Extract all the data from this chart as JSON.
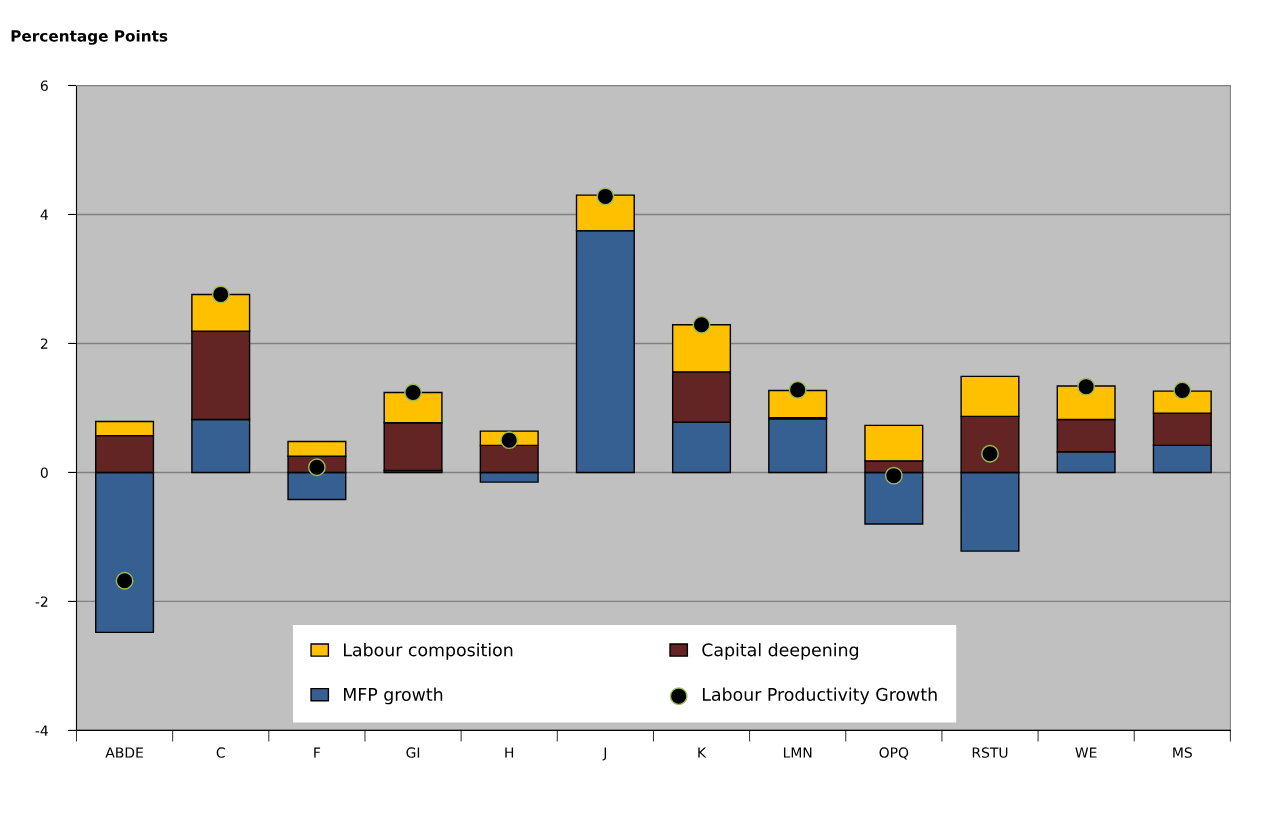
{
  "chart_data": {
    "type": "bar",
    "stacked": true,
    "ylabel": "Percentage Points",
    "categories": [
      "ABDE",
      "C",
      "F",
      "GI",
      "H",
      "J",
      "K",
      "LMN",
      "OPQ",
      "RSTU",
      "WE",
      "MS"
    ],
    "series": [
      {
        "name": "MFP growth",
        "color": "#376092",
        "values": [
          -2.48,
          0.82,
          -0.42,
          0.03,
          -0.15,
          3.75,
          0.78,
          0.83,
          -0.8,
          -1.22,
          0.32,
          0.42
        ]
      },
      {
        "name": "Capital deepening",
        "color": "#632523",
        "values": [
          0.57,
          1.37,
          0.25,
          0.74,
          0.42,
          0,
          0.78,
          0.02,
          0.18,
          0.87,
          0.5,
          0.5
        ]
      },
      {
        "name": "Labour composition",
        "color": "#ffc000",
        "values": [
          0.22,
          0.57,
          0.23,
          0.47,
          0.22,
          0.55,
          0.73,
          0.42,
          0.55,
          0.62,
          0.52,
          0.34
        ]
      },
      {
        "name": "Labour Productivity Growth",
        "type": "scatter",
        "color": "#000000",
        "values": [
          -1.68,
          2.76,
          0.08,
          1.24,
          0.5,
          4.28,
          2.29,
          1.28,
          -0.05,
          0.29,
          1.33,
          1.27
        ]
      }
    ],
    "ylim": [
      -4,
      6
    ],
    "yticks": [
      {
        "value": -4,
        "label": "-4"
      },
      {
        "value": -2,
        "label": "-2"
      },
      0,
      2,
      4,
      6
    ],
    "grid": "y",
    "legend": "bottom",
    "marker": "circle"
  }
}
